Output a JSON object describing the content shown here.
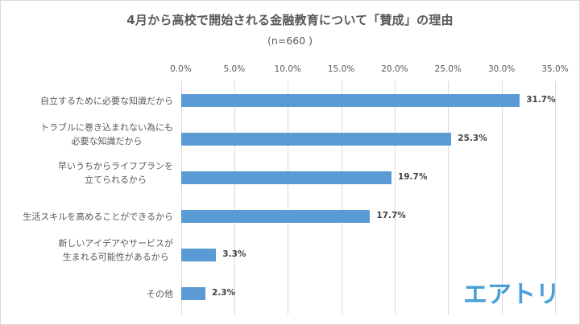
{
  "chart_data": {
    "type": "bar",
    "orientation": "horizontal",
    "title": "4月から高校で開始される金融教育について「賛成」の理由",
    "subtitle": "(n=660 )",
    "xlabel": "",
    "ylabel": "",
    "xlim": [
      0,
      35
    ],
    "x_ticks": [
      "0.0%",
      "5.0%",
      "10.0%",
      "15.0%",
      "20.0%",
      "25.0%",
      "30.0%",
      "35.0%"
    ],
    "grid": true,
    "axis_position": "top",
    "legend": null,
    "bar_color": "#5b9bd5",
    "categories": [
      "自立するために必要な知識だから",
      "トラブルに巻き込まれない為にも必要な知識だから",
      "早いうちからライフプランを立てられるから",
      "生活スキルを高めることができるから",
      "新しいアイデアやサービスが生まれる可能性があるから",
      "その他"
    ],
    "category_lines": [
      [
        "自立するために必要な知識だから"
      ],
      [
        "トラブルに巻き込まれない為にも",
        "必要な知識だから"
      ],
      [
        "早いうちからライフプランを",
        "立てられるから"
      ],
      [
        "生活スキルを高めることができるから"
      ],
      [
        "新しいアイデアやサービスが",
        "生まれる可能性があるから"
      ],
      [
        "その他"
      ]
    ],
    "values": [
      31.7,
      25.3,
      19.7,
      17.7,
      3.3,
      2.3
    ],
    "value_labels": [
      "31.7%",
      "25.3%",
      "19.7%",
      "17.7%",
      "3.3%",
      "2.3%"
    ]
  },
  "branding": {
    "logo_text": "エアトリ",
    "logo_color": "#4a9fd8"
  }
}
